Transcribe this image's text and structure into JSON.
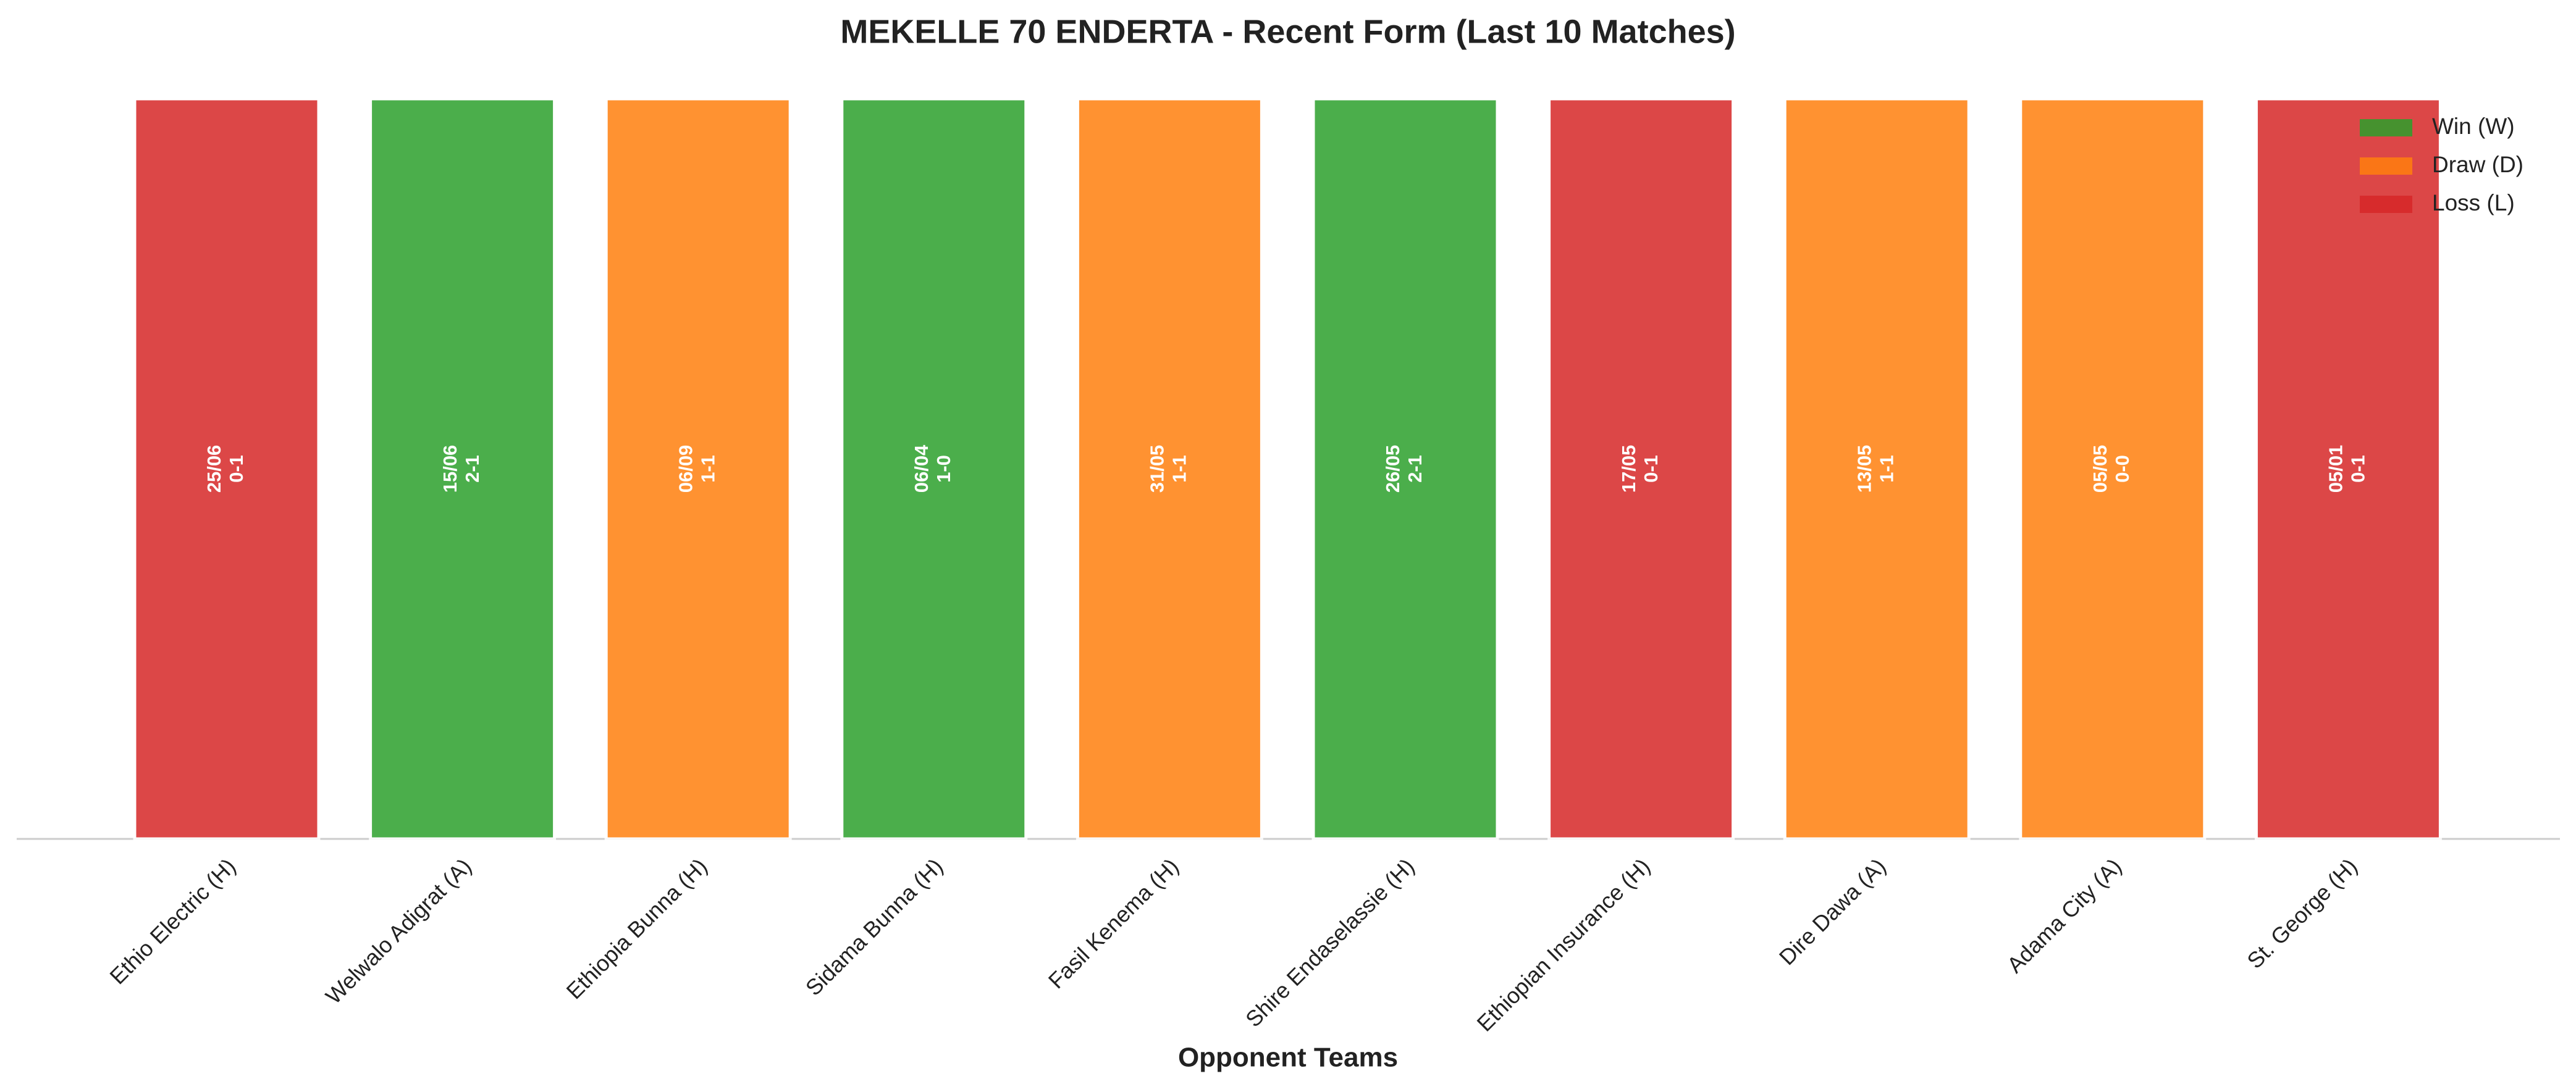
{
  "chart_data": {
    "type": "bar",
    "title": "MEKELLE 70 ENDERTA - Recent Form (Last 10 Matches)",
    "xlabel": "Opponent Teams",
    "categories": [
      "Ethio Electric (H)",
      "Welwalo Adigrat (A)",
      "Ethiopia Bunna (H)",
      "Sidama Bunna (H)",
      "Fasil Kenema (H)",
      "Shire Endaselassie (H)",
      "Ethiopian Insurance (H)",
      "Dire Dawa (A)",
      "Adama City (A)",
      "St. George (H)"
    ],
    "values": [
      1,
      1,
      1,
      1,
      1,
      1,
      1,
      1,
      1,
      1
    ],
    "dates": [
      "25/06",
      "15/06",
      "06/09",
      "06/04",
      "31/05",
      "26/05",
      "17/05",
      "13/05",
      "05/05",
      "05/01"
    ],
    "scores": [
      "0-1",
      "2-1",
      "1-1",
      "1-0",
      "1-1",
      "2-1",
      "0-1",
      "1-1",
      "0-0",
      "0-1"
    ],
    "colors": [
      "#d62728",
      "#2ca02c",
      "#ff7f0e",
      "#2ca02c",
      "#ff7f0e",
      "#2ca02c",
      "#d62728",
      "#ff7f0e",
      "#ff7f0e",
      "#d62728"
    ],
    "ylim": [
      0,
      1
    ],
    "legend": [
      {
        "name": "Win (W)",
        "color": "#2ca02c"
      },
      {
        "name": "Draw (D)",
        "color": "#ff7f0e"
      },
      {
        "name": "Loss (L)",
        "color": "#d62728"
      }
    ],
    "legend_loc": "upper right"
  }
}
